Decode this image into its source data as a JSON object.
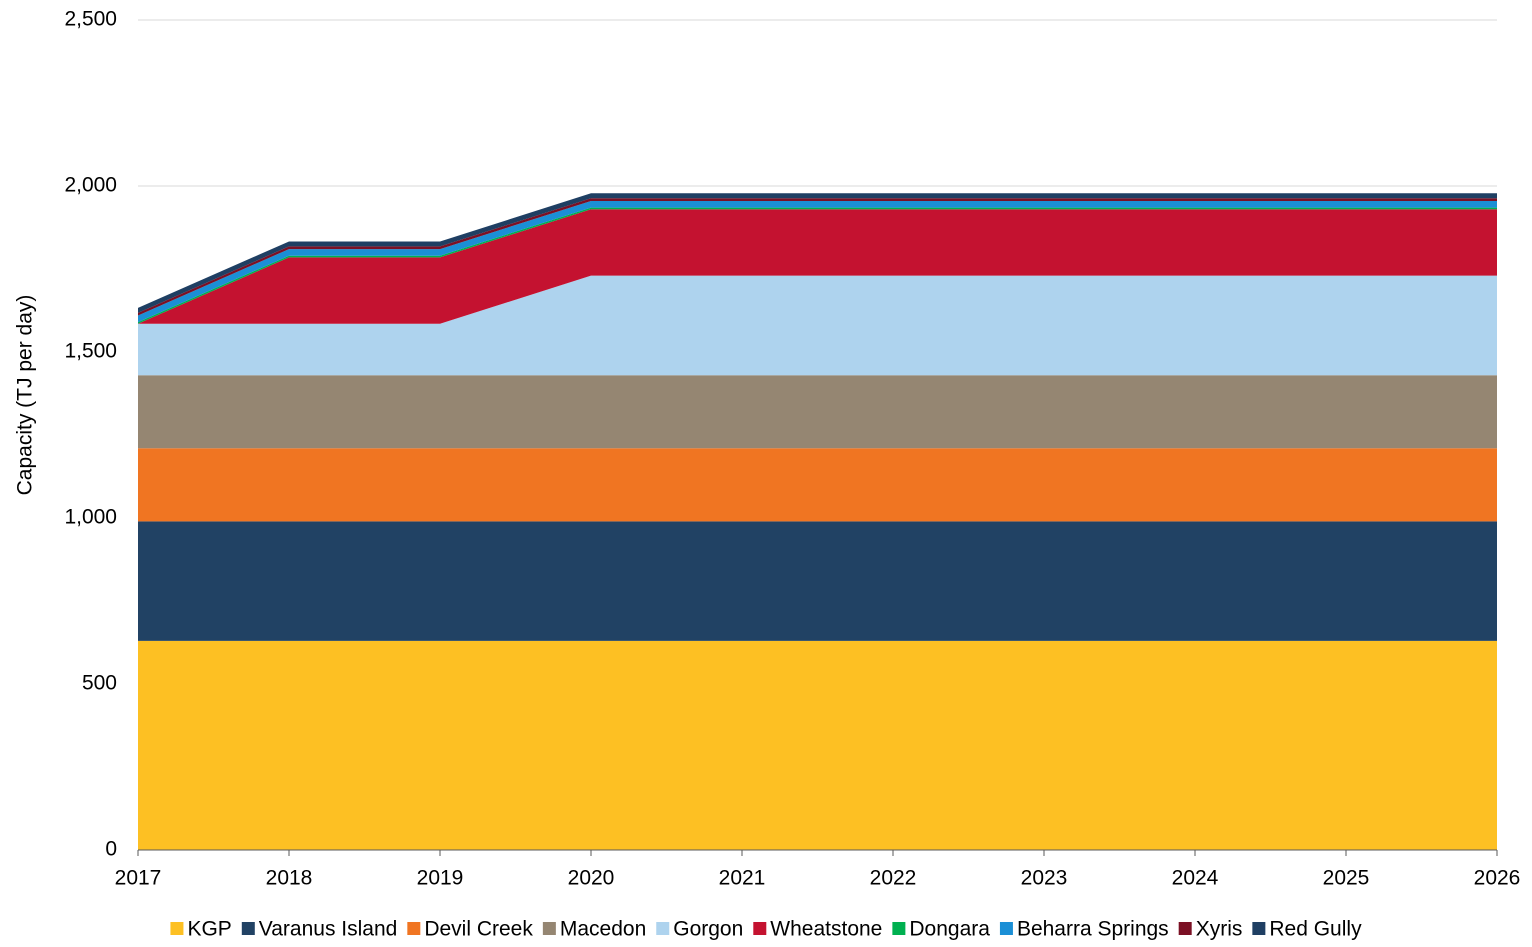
{
  "chart_data": {
    "type": "stacked_area",
    "y_label": "Capacity (TJ per day)",
    "x": [
      2017,
      2018,
      2019,
      2020,
      2021,
      2022,
      2023,
      2024,
      2025,
      2026
    ],
    "xlim": [
      2017,
      2026
    ],
    "xticks": [
      2017,
      2018,
      2019,
      2020,
      2021,
      2022,
      2023,
      2024,
      2025,
      2026
    ],
    "ylim": [
      0,
      2500
    ],
    "yticks": [
      0,
      500,
      {
        "value": 1000,
        "label": "1,000"
      },
      {
        "value": 1500,
        "label": "1,500"
      },
      {
        "value": 2000,
        "label": "2,000"
      },
      {
        "value": 2500,
        "label": "2,500"
      }
    ],
    "grid": true,
    "legend": "bottom",
    "series": [
      {
        "name": "KGP",
        "color": "#fdc023",
        "values": [
          630,
          630,
          630,
          630,
          630,
          630,
          630,
          630,
          630,
          630
        ]
      },
      {
        "name": "Varanus Island",
        "color": "#214264",
        "values": [
          360,
          360,
          360,
          360,
          360,
          360,
          360,
          360,
          360,
          360
        ]
      },
      {
        "name": "Devil Creek",
        "color": "#f07522",
        "values": [
          220,
          220,
          220,
          220,
          220,
          220,
          220,
          220,
          220,
          220
        ]
      },
      {
        "name": "Macedon",
        "color": "#958672",
        "values": [
          220,
          220,
          220,
          220,
          220,
          220,
          220,
          220,
          220,
          220
        ]
      },
      {
        "name": "Gorgon",
        "color": "#aed3ee",
        "values": [
          155,
          155,
          155,
          300,
          300,
          300,
          300,
          300,
          300,
          300
        ]
      },
      {
        "name": "Wheatstone",
        "color": "#c41230",
        "values": [
          0,
          200,
          200,
          200,
          200,
          200,
          200,
          200,
          200,
          200
        ]
      },
      {
        "name": "Dongara",
        "color": "#00b050",
        "values": [
          5,
          5,
          5,
          5,
          5,
          5,
          5,
          5,
          5,
          5
        ]
      },
      {
        "name": "Beharra Springs",
        "color": "#1b8fd6",
        "values": [
          20,
          20,
          20,
          20,
          20,
          20,
          20,
          20,
          20,
          20
        ]
      },
      {
        "name": "Xyris",
        "color": "#7b1024",
        "values": [
          8,
          8,
          8,
          8,
          8,
          8,
          8,
          8,
          8,
          8
        ]
      },
      {
        "name": "Red Gully",
        "color": "#1f3f63",
        "values": [
          15,
          15,
          15,
          15,
          15,
          15,
          15,
          15,
          15,
          15
        ]
      }
    ]
  }
}
